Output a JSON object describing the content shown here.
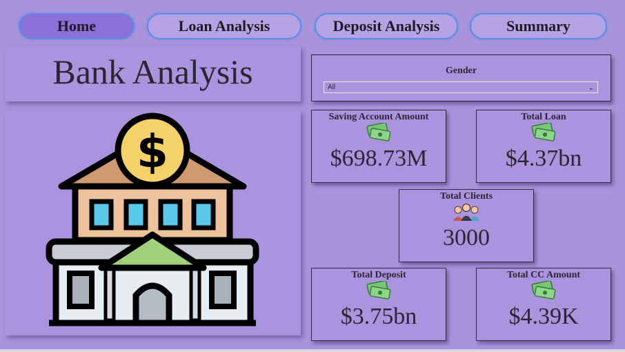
{
  "nav": {
    "home": "Home",
    "loan": "Loan Analysis",
    "deposit": "Deposit Analysis",
    "summary": "Summary"
  },
  "title": "Bank Analysis",
  "slicer": {
    "label": "Gender",
    "value": "All"
  },
  "cards": {
    "saving": {
      "label": "Saving Account Amount",
      "value": "$698.73M",
      "icon": "money-icon"
    },
    "loan": {
      "label": "Total Loan",
      "value": "$4.37bn",
      "icon": "money-icon"
    },
    "clients": {
      "label": "Total Clients",
      "value": "3000",
      "icon": "people-icon"
    },
    "deposit": {
      "label": "Total Deposit",
      "value": "$3.75bn",
      "icon": "money-icon"
    },
    "cc": {
      "label": "Total CC Amount",
      "value": "$4.39K",
      "icon": "money-icon"
    }
  },
  "colors": {
    "background": "#a994dc",
    "active_button": "#8c6fd8",
    "button_border": "#5a8ee0"
  }
}
